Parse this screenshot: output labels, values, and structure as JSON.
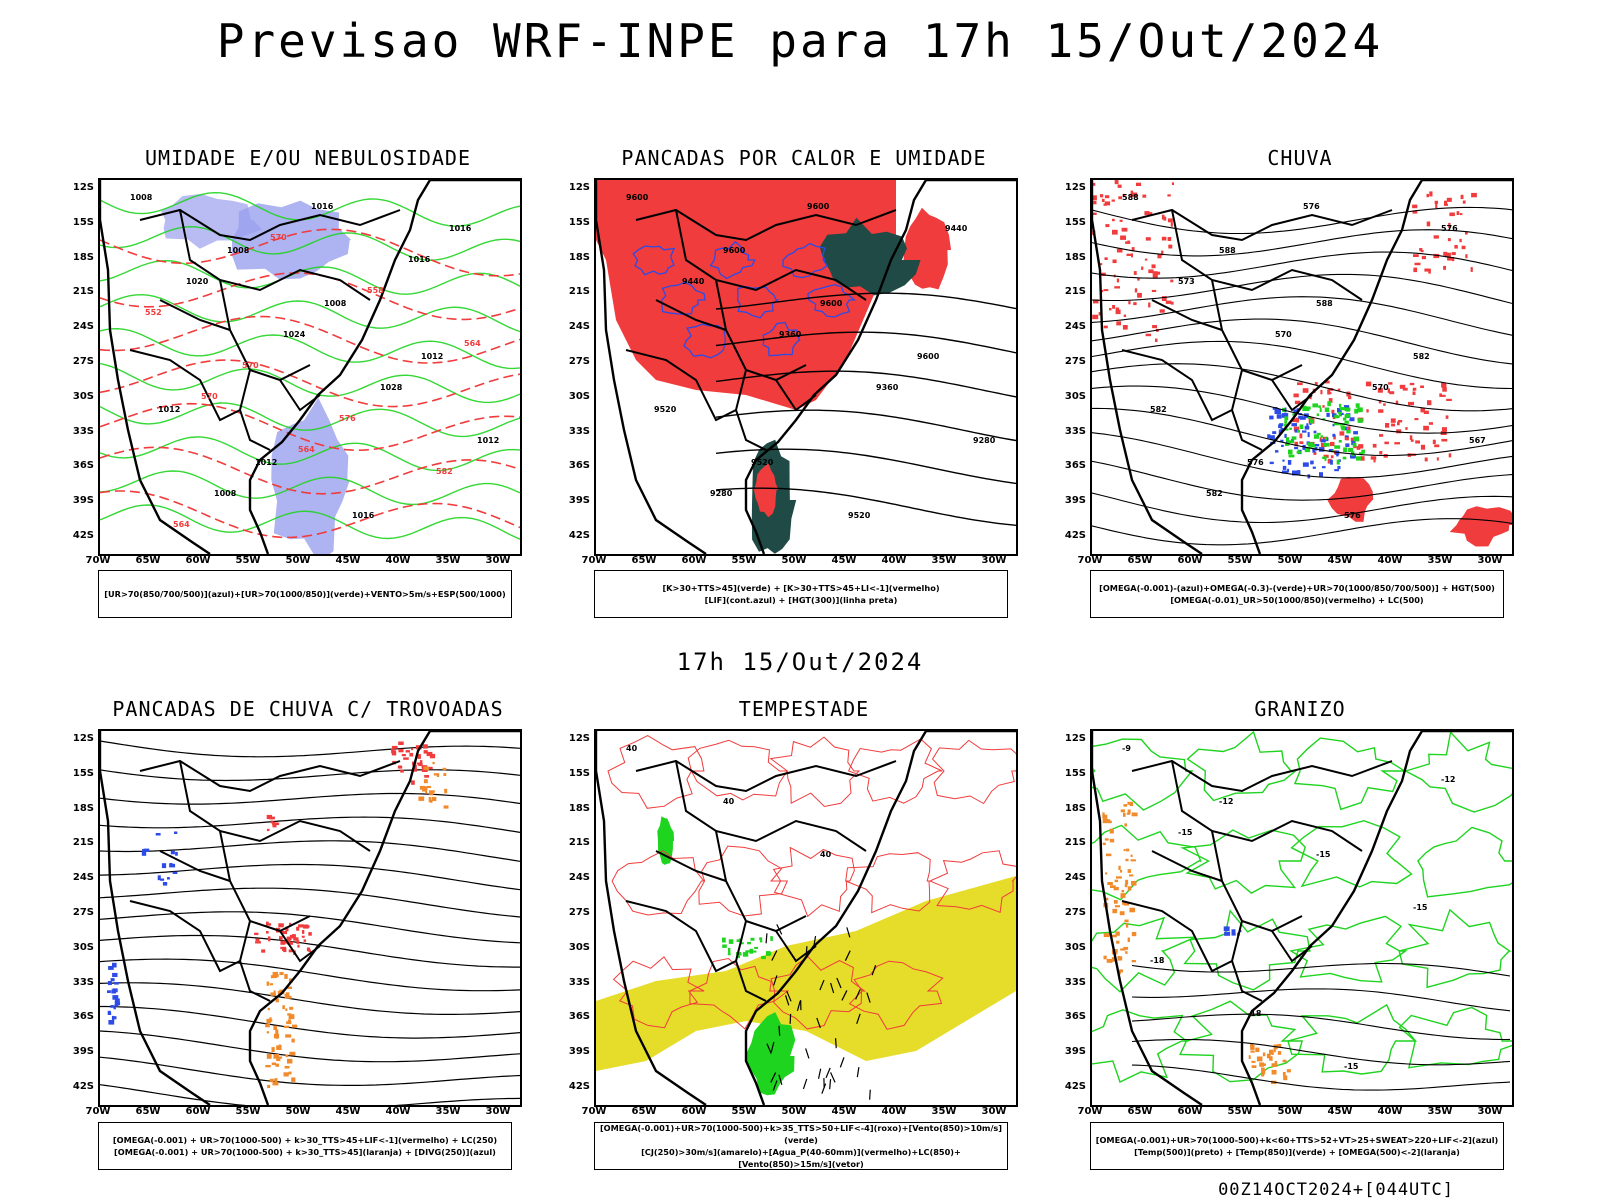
{
  "main_title": "Previsao WRF-INPE  para 17h 15/Out/2024",
  "mid_title": "17h 15/Out/2024",
  "footer": "00Z14OCT2024+[044UTC]",
  "lat_labels": [
    "12S",
    "15S",
    "18S",
    "21S",
    "24S",
    "27S",
    "30S",
    "33S",
    "36S",
    "39S",
    "42S"
  ],
  "lon_labels": [
    "70W",
    "65W",
    "60W",
    "55W",
    "50W",
    "45W",
    "40W",
    "35W",
    "30W"
  ],
  "panels": [
    {
      "key": "umidade",
      "title": "UMIDADE E/OU NEBULOSIDADE",
      "legend": [
        "[UR>70(850/700/500)](azul)+[UR>70(1000/850)](verde)+VENTO>5m/s+ESP(500/1000)"
      ],
      "contour_labels": [
        "1008",
        "1008",
        "1008",
        "1012",
        "1012",
        "1012",
        "1016",
        "1016",
        "1020",
        "1024",
        "1028",
        "1012",
        "1008",
        "1016",
        "1016"
      ],
      "red_labels": [
        "552",
        "570",
        "576",
        "582",
        "564",
        "570",
        "558",
        "564",
        "570",
        "564"
      ]
    },
    {
      "key": "pancadas_calor",
      "title": "PANCADAS POR CALOR E UMIDADE",
      "legend": [
        "[K>30+TTS>45](verde) + [K>30+TTS>45+LI<-1](vermelho)",
        "[LIF](cont.azul) + [HGT(300)](linha preta)"
      ],
      "contour_labels": [
        "9600",
        "9600",
        "9600",
        "9600",
        "9520",
        "9520",
        "9520",
        "9440",
        "9440",
        "9360",
        "9360",
        "9280",
        "9280",
        "9600"
      ],
      "red_labels": []
    },
    {
      "key": "chuva",
      "title": "CHUVA",
      "legend": [
        "[OMEGA(-0.001)-(azul)+OMEGA(-0.3)-(verde)+UR>70(1000/850/700/500)] + HGT(500)",
        "[OMEGA(-0.01)_UR>50(1000/850)(vermelho) + LC(500)"
      ],
      "contour_labels": [
        "588",
        "588",
        "588",
        "582",
        "582",
        "576",
        "576",
        "576",
        "573",
        "570",
        "570",
        "567",
        "582",
        "576"
      ],
      "red_labels": []
    },
    {
      "key": "trovoadas",
      "title": "PANCADAS DE CHUVA C/ TROVOADAS",
      "legend": [
        "[OMEGA(-0.001) + UR>70(1000-500) + k>30_TTS>45+LIF<-1](vermelho) + LC(250)",
        "[OMEGA(-0.001) + UR>70(1000-500) + k>30_TTS>45](laranja) + [DIVG(250)](azul)"
      ],
      "contour_labels": [],
      "red_labels": []
    },
    {
      "key": "tempestade",
      "title": "TEMPESTADE",
      "legend": [
        "[OMEGA(-0.001)+UR>70(1000-500)+k>35_TTS>50+LIF<-4](roxo)+[Vento(850)>10m/s](verde)",
        "[CJ(250)>30m/s](amarelo)+[Agua_P(40-60mm)](vermelho)+LC(850)+[Vento(850)>15m/s](vetor)"
      ],
      "contour_labels": [
        "40",
        "40",
        "40"
      ],
      "red_labels": []
    },
    {
      "key": "granizo",
      "title": "GRANIZO",
      "legend": [
        "[OMEGA(-0.001)+UR>70(1000-500)+k<60+TTS>52+VT>25+SWEAT>220+LIF<-2](azul)",
        "[Temp(500)](preto) + [Temp(850)](verde) + [OMEGA(500)<-2](laranja)"
      ],
      "contour_labels": [
        "-9",
        "-12",
        "-15",
        "-15",
        "-18",
        "-18",
        "-15",
        "-12",
        "-15"
      ],
      "red_labels": []
    }
  ],
  "colors": {
    "red": "#f03c3c",
    "green": "#1fd41f",
    "blue": "#2d4be6",
    "lightblue": "#9aa0ee",
    "yellow": "#e6dc2a",
    "darkteal": "#1f4a46",
    "orange": "#f08a2a",
    "magenta": "#c02cd8",
    "black": "#000000"
  }
}
